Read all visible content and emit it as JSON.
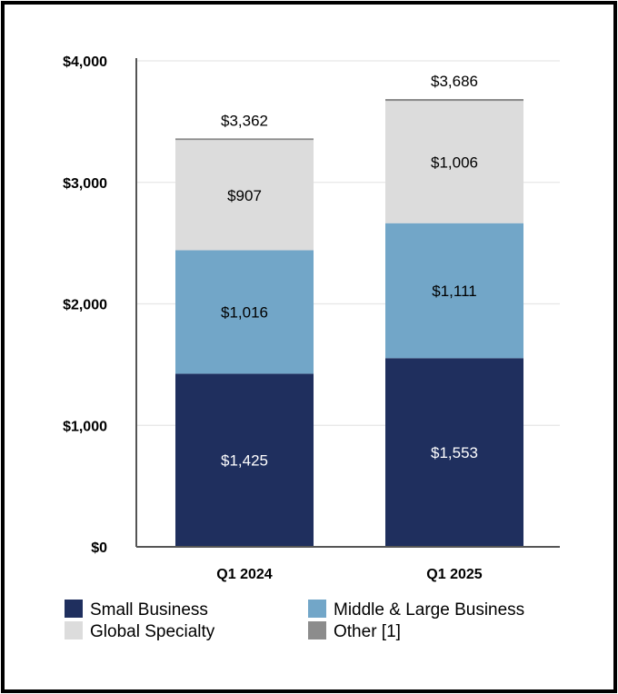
{
  "chart_data": {
    "type": "bar",
    "stacked": true,
    "categories": [
      "Q1 2024",
      "Q1 2025"
    ],
    "series": [
      {
        "name": "Small Business",
        "values": [
          1425,
          1553
        ],
        "labels": [
          "$1,425",
          "$1,553"
        ],
        "color": "#1f2f5e",
        "label_color": "#ffffff"
      },
      {
        "name": "Middle & Large Business",
        "values": [
          1016,
          1111
        ],
        "labels": [
          "$1,016",
          "$1,111"
        ],
        "color": "#72a6c8",
        "label_color": "#000000"
      },
      {
        "name": "Global Specialty",
        "values": [
          907,
          1006
        ],
        "labels": [
          "$907",
          "$1,006"
        ],
        "color": "#dcdcdc",
        "label_color": "#000000"
      },
      {
        "name": "Other [1]",
        "values": [
          14,
          16
        ],
        "labels": [
          "",
          ""
        ],
        "color": "#8c8c8c",
        "label_color": "#000000"
      }
    ],
    "totals": [
      "$3,362",
      "$3,686"
    ],
    "total_values": [
      3362,
      3686
    ],
    "ylim": [
      0,
      4000
    ],
    "yticks": [
      0,
      1000,
      2000,
      3000,
      4000
    ],
    "ytick_labels": [
      "$0",
      "$1,000",
      "$2,000",
      "$3,000",
      "$4,000"
    ],
    "grid": true,
    "legend_position": "bottom"
  }
}
